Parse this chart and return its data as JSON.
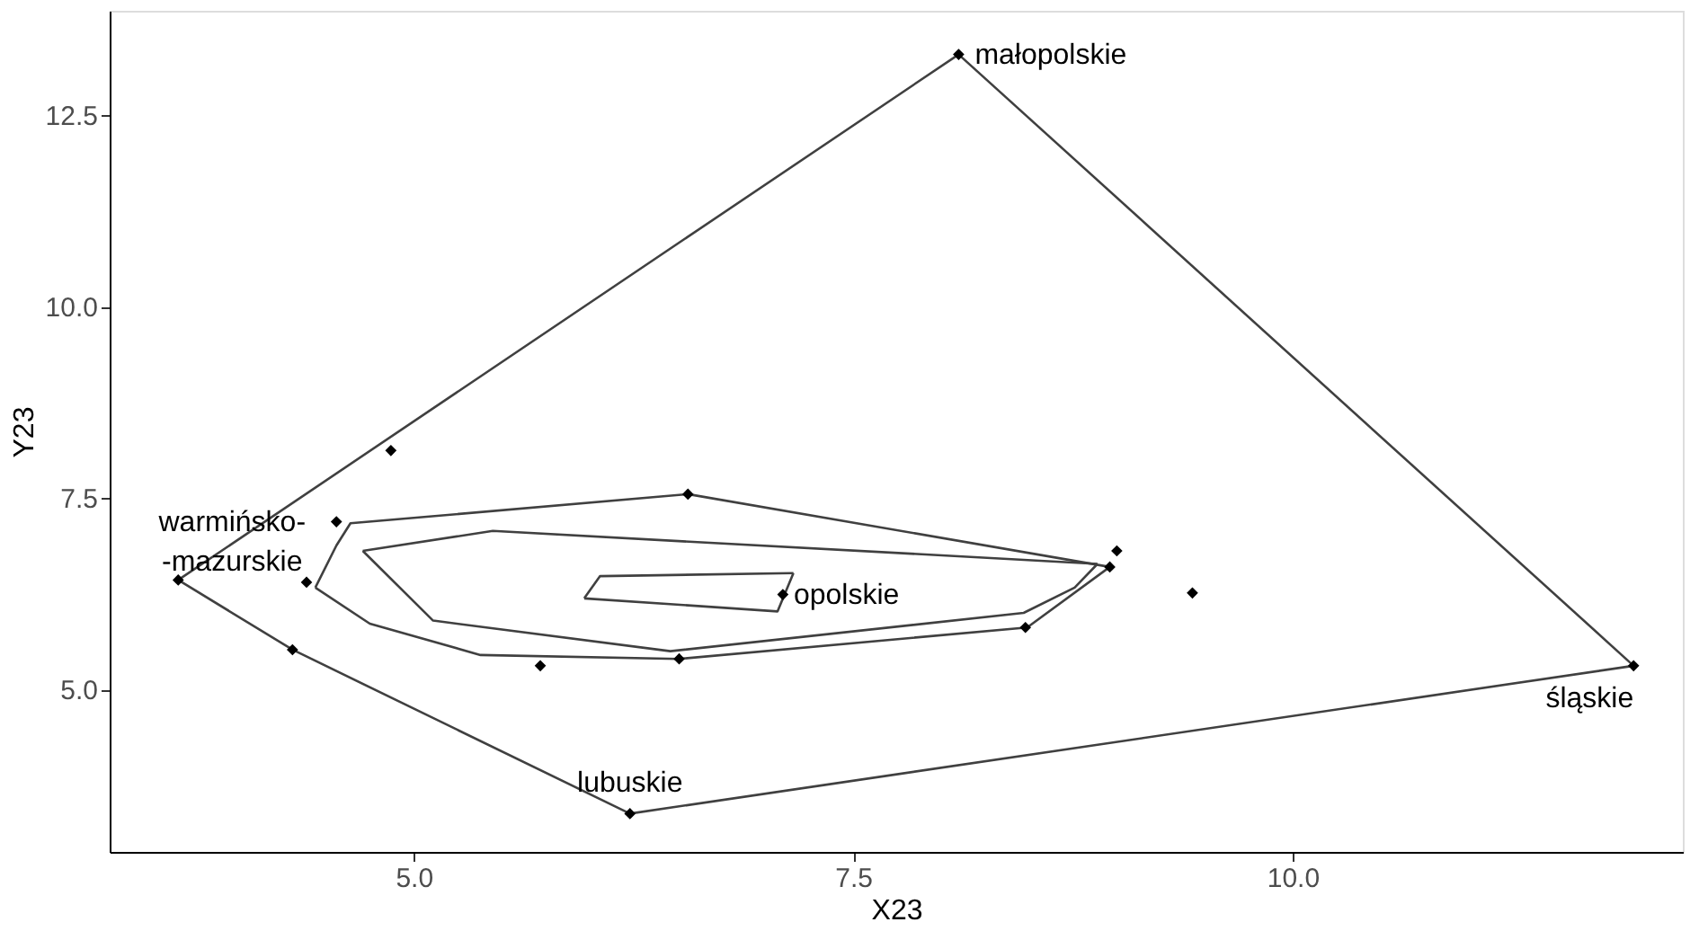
{
  "chart_data": {
    "type": "scatter",
    "xlabel": "X23",
    "ylabel": "Y23",
    "xlim": [
      3.27,
      12.22
    ],
    "ylim": [
      2.88,
      13.86
    ],
    "xticks": [
      {
        "value": 5,
        "label": "5.0"
      },
      {
        "value": 7.5,
        "label": "7.5"
      },
      {
        "value": 10,
        "label": "10.0"
      }
    ],
    "yticks": [
      {
        "value": 5,
        "label": "5.0"
      },
      {
        "value": 7.5,
        "label": "7.5"
      },
      {
        "value": 10,
        "label": "10.0"
      },
      {
        "value": 12.5,
        "label": "12.5"
      }
    ],
    "grid": false,
    "series": [
      {
        "type": "line",
        "color": "#404040",
        "x": [
          3.66,
          8.1,
          11.94
        ],
        "values": [
          6.43,
          13.29,
          5.31
        ]
      },
      {
        "type": "line",
        "color": "#404040",
        "x": [
          3.66,
          4.31,
          6.23,
          11.94
        ],
        "values": [
          6.43,
          5.52,
          3.38,
          5.31
        ]
      },
      {
        "type": "line",
        "color": "#404040",
        "x": [
          4.44,
          4.56,
          4.64,
          6.56,
          8.96
        ],
        "values": [
          6.33,
          6.88,
          7.17,
          7.55,
          6.6
        ]
      },
      {
        "type": "line",
        "color": "#404040",
        "x": [
          4.44,
          4.75,
          5.38,
          6.51,
          8.49,
          8.96
        ],
        "values": [
          6.33,
          5.86,
          5.45,
          5.4,
          5.81,
          6.6
        ]
      },
      {
        "type": "line",
        "color": "#404040",
        "x": [
          4.71,
          5.45,
          8.89
        ],
        "values": [
          6.81,
          7.07,
          6.64
        ]
      },
      {
        "type": "line",
        "color": "#404040",
        "x": [
          4.71,
          5.11,
          6.46,
          8.47,
          8.76,
          8.89
        ],
        "values": [
          6.81,
          5.9,
          5.5,
          6.0,
          6.33,
          6.64
        ]
      },
      {
        "type": "line",
        "color": "#404040",
        "x": [
          5.97,
          6.06,
          7.16
        ],
        "values": [
          6.19,
          6.48,
          6.52
        ]
      },
      {
        "type": "line",
        "color": "#404040",
        "x": [
          5.97,
          7.07,
          7.16
        ],
        "values": [
          6.19,
          6.02,
          6.52
        ]
      },
      {
        "color": "#000000",
        "marker": "diamond",
        "x": [
          8.1,
          11.94,
          6.23,
          3.66,
          4.31,
          4.87,
          4.56,
          4.39,
          5.72,
          6.51,
          6.56,
          7.1,
          8.48,
          9.0,
          8.96,
          9.43
        ],
        "values": [
          13.29,
          5.31,
          3.38,
          6.43,
          5.52,
          8.12,
          7.19,
          6.4,
          5.31,
          5.4,
          7.55,
          6.24,
          5.81,
          6.81,
          6.6,
          6.26
        ]
      }
    ],
    "annotations": [
      {
        "text": "małopolskie",
        "x": 8.1,
        "y": 13.29
      },
      {
        "text": "śląskie",
        "x": 11.94,
        "y": 5.31
      },
      {
        "text": "lubuskie",
        "x": 6.23,
        "y": 3.38
      },
      {
        "text": "warmińsko-\n-mazurskie",
        "x": 3.66,
        "y": 6.43
      },
      {
        "text": "opolskie",
        "x": 7.1,
        "y": 6.24
      }
    ]
  }
}
